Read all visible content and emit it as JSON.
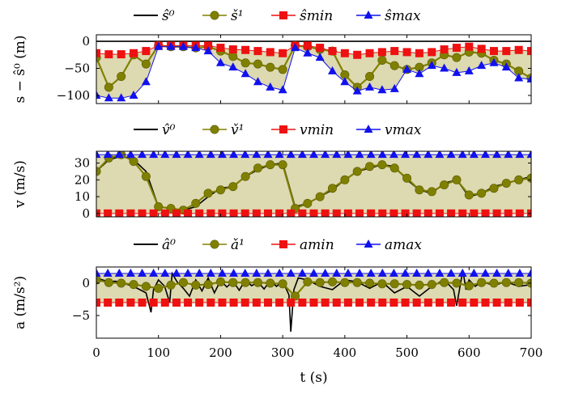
{
  "chart_data": [
    {
      "type": "line",
      "ylabel": "s − ŝ⁰ (m)",
      "xlim": [
        0,
        700
      ],
      "ylim": [
        -115,
        12
      ],
      "yticks": [
        0,
        -50,
        -100
      ],
      "band": "between ŝ_min and ŝ_max",
      "legend": [
        "ŝ⁰",
        "š¹",
        "ŝmin",
        "ŝmax"
      ],
      "series": [
        {
          "name": "ŝ⁰",
          "color": "#000000",
          "marker": "none",
          "x": [
            0,
            700
          ],
          "y": [
            0,
            0
          ]
        },
        {
          "name": "š¹",
          "color": "#808000",
          "marker": "circle",
          "x": [
            0,
            20,
            40,
            60,
            80,
            100,
            120,
            140,
            160,
            180,
            200,
            220,
            240,
            260,
            280,
            300,
            320,
            340,
            360,
            380,
            400,
            420,
            440,
            460,
            480,
            500,
            520,
            540,
            560,
            580,
            600,
            620,
            640,
            660,
            680,
            700
          ],
          "y": [
            -30,
            -85,
            -65,
            -25,
            -42,
            -8,
            -10,
            -10,
            -12,
            -10,
            -18,
            -28,
            -40,
            -42,
            -48,
            -52,
            -8,
            -10,
            -15,
            -18,
            -62,
            -85,
            -65,
            -35,
            -45,
            -52,
            -48,
            -40,
            -25,
            -30,
            -20,
            -22,
            -35,
            -42,
            -55,
            -68
          ]
        },
        {
          "name": "ŝmin",
          "color": "#ee1111",
          "marker": "square",
          "x": [
            0,
            20,
            40,
            60,
            80,
            100,
            120,
            140,
            160,
            180,
            200,
            220,
            240,
            260,
            280,
            300,
            320,
            340,
            360,
            380,
            400,
            420,
            440,
            460,
            480,
            500,
            520,
            540,
            560,
            580,
            600,
            620,
            640,
            660,
            680,
            700
          ],
          "y": [
            -22,
            -24,
            -24,
            -22,
            -18,
            -8,
            -8,
            -8,
            -8,
            -8,
            -12,
            -15,
            -16,
            -18,
            -20,
            -22,
            -8,
            -8,
            -12,
            -18,
            -22,
            -25,
            -22,
            -20,
            -18,
            -20,
            -22,
            -20,
            -15,
            -12,
            -10,
            -14,
            -18,
            -18,
            -16,
            -18
          ]
        },
        {
          "name": "ŝmax",
          "color": "#1111ee",
          "marker": "triangle",
          "x": [
            0,
            20,
            40,
            60,
            80,
            100,
            120,
            140,
            160,
            180,
            200,
            220,
            240,
            260,
            280,
            300,
            320,
            340,
            360,
            380,
            400,
            420,
            440,
            460,
            480,
            500,
            520,
            540,
            560,
            580,
            600,
            620,
            640,
            660,
            680,
            700
          ],
          "y": [
            -100,
            -105,
            -105,
            -100,
            -75,
            -10,
            -10,
            -10,
            -12,
            -18,
            -40,
            -48,
            -60,
            -75,
            -85,
            -90,
            -12,
            -22,
            -30,
            -55,
            -75,
            -92,
            -85,
            -90,
            -88,
            -52,
            -60,
            -45,
            -50,
            -58,
            -55,
            -45,
            -40,
            -48,
            -68,
            -70
          ]
        }
      ]
    },
    {
      "type": "line",
      "ylabel": "v (m/s)",
      "xlim": [
        0,
        700
      ],
      "ylim": [
        -2,
        37
      ],
      "yticks": [
        0,
        10,
        20,
        30
      ],
      "band": "between vmin and vmax",
      "legend": [
        "v̂⁰",
        "v̌¹",
        "vmin",
        "vmax"
      ],
      "series": [
        {
          "name": "v̂⁰",
          "color": "#000000",
          "marker": "none",
          "x": [
            0,
            20,
            40,
            60,
            80,
            100,
            120,
            140,
            160,
            180,
            200,
            220,
            240,
            260,
            280,
            300,
            320,
            340,
            360,
            380,
            400,
            420,
            440,
            460,
            480,
            500,
            520,
            540,
            560,
            580,
            600,
            620,
            640,
            660,
            680,
            700
          ],
          "y": [
            25,
            32,
            34,
            32,
            25,
            4,
            3,
            2,
            4,
            10,
            15,
            16,
            22,
            26,
            29,
            30,
            4,
            6,
            10,
            14,
            20,
            25,
            27,
            29,
            28,
            20,
            14,
            12,
            18,
            20,
            10,
            12,
            16,
            18,
            20,
            22
          ]
        },
        {
          "name": "v̌¹",
          "color": "#808000",
          "marker": "circle",
          "x": [
            0,
            20,
            40,
            60,
            80,
            100,
            120,
            140,
            160,
            180,
            200,
            220,
            240,
            260,
            280,
            300,
            320,
            340,
            360,
            380,
            400,
            420,
            440,
            460,
            480,
            500,
            520,
            540,
            560,
            580,
            600,
            620,
            640,
            660,
            680,
            700
          ],
          "y": [
            25,
            33,
            35,
            31,
            22,
            4,
            3,
            2,
            6,
            12,
            14,
            16,
            22,
            27,
            29,
            29,
            3,
            6,
            10,
            15,
            20,
            25,
            28,
            29,
            27,
            21,
            14,
            13,
            17,
            20,
            11,
            12,
            15,
            18,
            20,
            21
          ]
        },
        {
          "name": "vmin",
          "color": "#ee1111",
          "marker": "square",
          "x": [
            0,
            700
          ],
          "y": [
            0,
            0
          ]
        },
        {
          "name": "vmax",
          "color": "#1111ee",
          "marker": "triangle",
          "x": [
            0,
            700
          ],
          "y": [
            35,
            35
          ]
        }
      ]
    },
    {
      "type": "line",
      "ylabel": "a (m/s²)",
      "xlim": [
        0,
        700
      ],
      "ylim": [
        -8.5,
        2.5
      ],
      "yticks": [
        0,
        -5
      ],
      "xticks": [
        0,
        100,
        200,
        300,
        400,
        500,
        600,
        700
      ],
      "xlabel": "t (s)",
      "band": "between amin and amax",
      "legend": [
        "â⁰",
        "ǎ¹",
        "amin",
        "amax"
      ],
      "series": [
        {
          "name": "â⁰",
          "color": "#000000",
          "marker": "none",
          "x": [
            0,
            10,
            20,
            30,
            40,
            50,
            60,
            70,
            80,
            88,
            92,
            100,
            110,
            118,
            122,
            130,
            140,
            150,
            160,
            170,
            180,
            190,
            200,
            210,
            220,
            230,
            240,
            250,
            260,
            270,
            280,
            290,
            300,
            310,
            313,
            318,
            325,
            340,
            360,
            380,
            400,
            420,
            440,
            460,
            480,
            500,
            520,
            540,
            560,
            575,
            580,
            590,
            595,
            600,
            610,
            620,
            640,
            660,
            680,
            700
          ],
          "y": [
            0.8,
            0.5,
            0.2,
            0.3,
            0.1,
            -0.2,
            -0.5,
            -1,
            -1.5,
            -4.5,
            -1,
            0.5,
            -0.5,
            -3,
            1.5,
            0.2,
            -0.8,
            -2,
            0.5,
            -1.2,
            0.8,
            -1.5,
            0.4,
            -0.6,
            0.3,
            -1.1,
            0.5,
            -0.4,
            0.2,
            -0.9,
            0.4,
            -0.5,
            0.3,
            -1.8,
            -7.5,
            -1,
            0.8,
            0.5,
            -0.5,
            -1,
            0.5,
            0.2,
            -0.8,
            0.2,
            -1.5,
            -0.5,
            -2,
            -0.5,
            0.5,
            -1,
            -3.5,
            2,
            -1,
            0.5,
            -0.5,
            0.2,
            -0.3,
            0.2,
            -0.5,
            -0.2
          ]
        },
        {
          "name": "ǎ¹",
          "color": "#808000",
          "marker": "circle",
          "x": [
            0,
            20,
            40,
            60,
            80,
            100,
            120,
            140,
            160,
            180,
            200,
            220,
            240,
            260,
            280,
            300,
            320,
            340,
            360,
            380,
            400,
            420,
            440,
            460,
            480,
            500,
            520,
            540,
            560,
            580,
            600,
            620,
            640,
            660,
            680,
            700
          ],
          "y": [
            0.5,
            0.1,
            0,
            -0.2,
            -0.5,
            -0.8,
            -0.3,
            0.1,
            -0.3,
            -0.2,
            0.2,
            0.1,
            0.1,
            0.1,
            0,
            -0.1,
            -2,
            0.2,
            0.1,
            0.2,
            0.1,
            0.1,
            0,
            -0.1,
            -0.1,
            -0.2,
            -0.3,
            -0.2,
            0.1,
            0,
            -0.4,
            0.1,
            0,
            0.1,
            0.1,
            0
          ]
        },
        {
          "name": "amin",
          "color": "#ee1111",
          "marker": "square",
          "x": [
            0,
            700
          ],
          "y": [
            -3,
            -3
          ]
        },
        {
          "name": "amax",
          "color": "#1111ee",
          "marker": "triangle",
          "x": [
            0,
            700
          ],
          "y": [
            1.5,
            1.5
          ]
        }
      ]
    }
  ]
}
